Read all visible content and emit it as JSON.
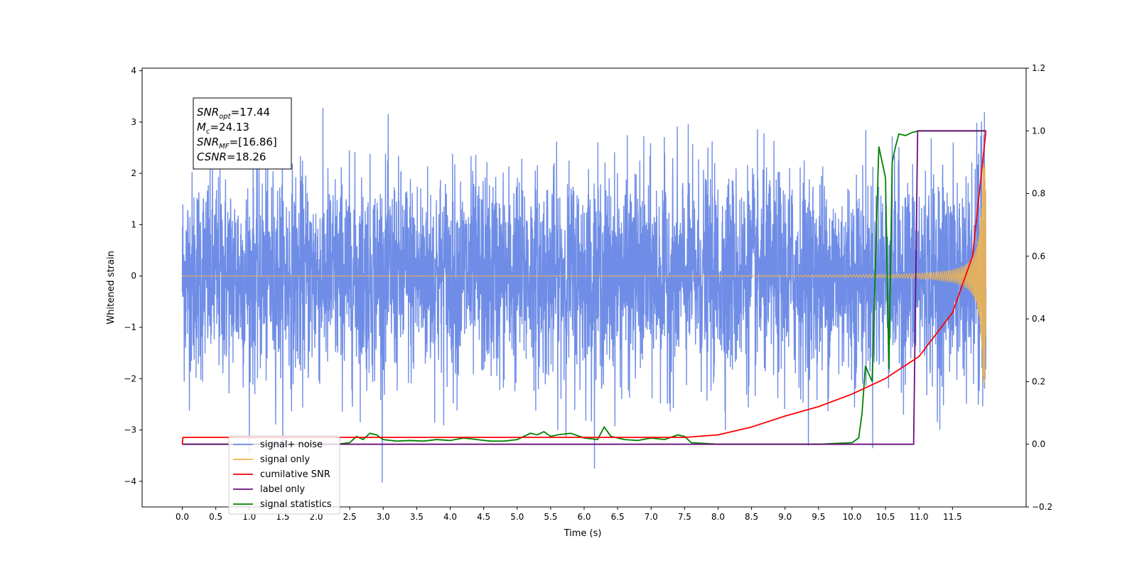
{
  "chart_data": {
    "type": "line",
    "xlabel": "Time (s)",
    "ylabel": "Whitened strain",
    "xlim": [
      -0.6,
      12.6
    ],
    "ylim": [
      -4.5,
      4.05
    ],
    "y2lim": [
      -0.2,
      1.2
    ],
    "x_ticks": [
      0.0,
      0.5,
      1.0,
      1.5,
      2.0,
      2.5,
      3.0,
      3.5,
      4.0,
      4.5,
      5.0,
      5.5,
      6.0,
      6.5,
      7.0,
      7.5,
      8.0,
      8.5,
      9.0,
      9.5,
      10.0,
      10.5,
      11.0,
      11.5
    ],
    "x_tick_labels": [
      "0.0",
      "0.5",
      "1.0",
      "1.5",
      "2.0",
      "2.5",
      "3.0",
      "3.5",
      "4.0",
      "4.5",
      "5.0",
      "5.5",
      "6.0",
      "6.5",
      "7.0",
      "7.5",
      "8.0",
      "8.5",
      "9.0",
      "9.5",
      "10.0",
      "10.5",
      "11.0",
      "11.5"
    ],
    "y_ticks": [
      4,
      3,
      2,
      1,
      0,
      -1,
      -2,
      -3,
      -4
    ],
    "y_tick_labels": [
      "4",
      "3",
      "2",
      "1",
      "0",
      "−1",
      "−2",
      "−3",
      "−4"
    ],
    "y2_ticks": [
      1.2,
      1.0,
      0.8,
      0.6,
      0.4,
      0.2,
      0.0,
      -0.2
    ],
    "y2_tick_labels": [
      "1.2",
      "1.0",
      "0.8",
      "0.6",
      "0.4",
      "0.2",
      "0.0",
      "−0.2"
    ],
    "grid": false,
    "legend_position": "bottom-left",
    "annotation": {
      "lines": [
        {
          "base": "SNR",
          "sub": "opt",
          "value": "=17.44"
        },
        {
          "base": "M",
          "sub": "c",
          "value": "=24.13"
        },
        {
          "base": "SNR",
          "sub": "MF",
          "value": "=[16.86]"
        },
        {
          "base": "CSNR",
          "sub": "",
          "value": "=18.26"
        }
      ]
    },
    "series": [
      {
        "name": "signal+ noise",
        "color": "#6f8de6",
        "axis": "left",
        "description_values": {
          "x_start": 0.0,
          "x_end": 12.0,
          "noise_sigma": 1.0,
          "y_max": 3.65,
          "y_min": -4.05
        }
      },
      {
        "name": "signal only",
        "color": "#f5b54a",
        "axis": "left",
        "description_values": {
          "x_start": 0.0,
          "x_end": 12.0,
          "chirp_amplitude_end": 2.2
        }
      },
      {
        "name": "cumilative SNR",
        "color": "#ff0000",
        "axis": "right",
        "x": [
          0.0,
          0.01,
          7.0,
          7.5,
          8.0,
          8.5,
          9.0,
          9.5,
          10.0,
          10.5,
          11.0,
          11.5,
          11.8,
          12.0
        ],
        "y": [
          0.0,
          0.022,
          0.022,
          0.022,
          0.03,
          0.055,
          0.09,
          0.12,
          0.16,
          0.21,
          0.28,
          0.42,
          0.6,
          1.0
        ]
      },
      {
        "name": "label only",
        "color": "#6a0f7a",
        "axis": "right",
        "x": [
          0.0,
          10.92,
          10.98,
          12.0
        ],
        "y": [
          0.0,
          0.0,
          1.0,
          1.0
        ]
      },
      {
        "name": "signal statistics",
        "color": "#008000",
        "axis": "right",
        "x": [
          0.0,
          2.3,
          2.5,
          2.6,
          2.7,
          2.8,
          2.9,
          3.0,
          3.2,
          3.4,
          3.6,
          3.8,
          4.0,
          4.2,
          4.4,
          4.6,
          4.8,
          5.0,
          5.2,
          5.3,
          5.4,
          5.5,
          5.6,
          5.8,
          6.0,
          6.2,
          6.3,
          6.4,
          6.6,
          6.8,
          7.0,
          7.2,
          7.4,
          7.5,
          7.6,
          8.0,
          9.0,
          9.5,
          10.0,
          10.1,
          10.15,
          10.2,
          10.3,
          10.4,
          10.45,
          10.5,
          10.55,
          10.6,
          10.65,
          10.7,
          10.8,
          10.9,
          11.0,
          11.5,
          12.0
        ],
        "y": [
          0.0,
          0.0,
          0.005,
          0.025,
          0.015,
          0.035,
          0.03,
          0.015,
          0.01,
          0.012,
          0.01,
          0.015,
          0.012,
          0.02,
          0.015,
          0.01,
          0.01,
          0.015,
          0.035,
          0.03,
          0.04,
          0.025,
          0.03,
          0.035,
          0.02,
          0.015,
          0.055,
          0.025,
          0.015,
          0.012,
          0.02,
          0.015,
          0.03,
          0.025,
          0.005,
          0.0,
          0.0,
          0.0,
          0.005,
          0.02,
          0.1,
          0.25,
          0.2,
          0.95,
          0.9,
          0.85,
          0.24,
          0.9,
          0.95,
          0.99,
          0.985,
          0.995,
          1.0,
          1.0,
          1.0
        ]
      }
    ]
  }
}
